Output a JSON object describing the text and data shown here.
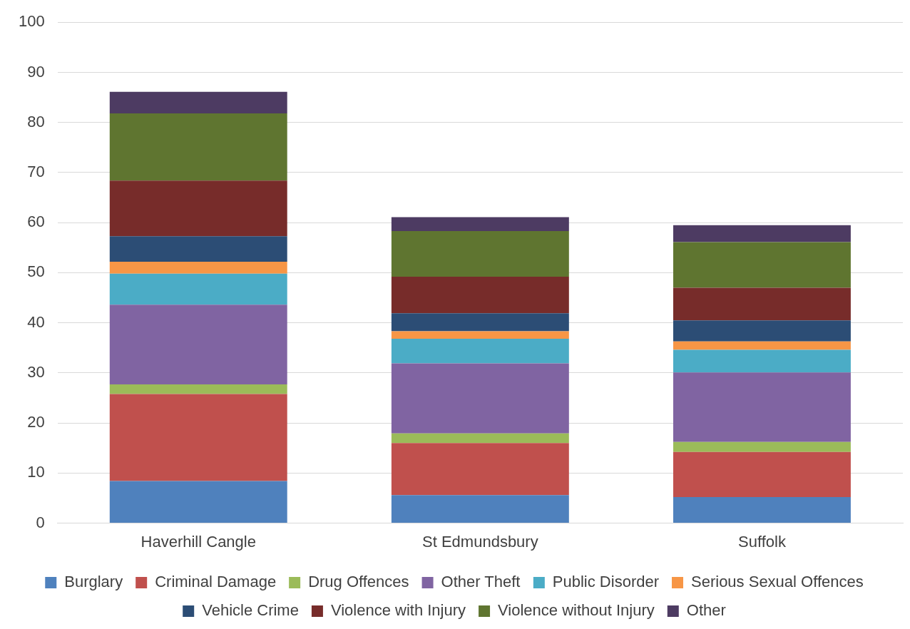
{
  "chart_data": {
    "type": "bar",
    "stacked": true,
    "categories": [
      "Haverhill Cangle",
      "St Edmundsbury",
      "Suffolk"
    ],
    "series": [
      {
        "name": "Burglary",
        "color": "#4f81bd",
        "values": [
          8.4,
          5.6,
          5.2
        ]
      },
      {
        "name": "Criminal Damage",
        "color": "#c0504d",
        "values": [
          17.4,
          10.4,
          9.0
        ]
      },
      {
        "name": "Drug Offences",
        "color": "#9bbb59",
        "values": [
          1.9,
          1.9,
          2.0
        ]
      },
      {
        "name": "Other Theft",
        "color": "#8064a2",
        "values": [
          15.9,
          14.0,
          13.9
        ]
      },
      {
        "name": "Public Disorder",
        "color": "#4bacc6",
        "values": [
          6.2,
          4.9,
          4.5
        ]
      },
      {
        "name": "Serious Sexual Offences",
        "color": "#f79646",
        "values": [
          2.4,
          1.5,
          1.7
        ]
      },
      {
        "name": "Vehicle Crime",
        "color": "#2c4d75",
        "values": [
          5.1,
          3.6,
          4.2
        ]
      },
      {
        "name": "Violence with Injury",
        "color": "#772c2a",
        "values": [
          11.1,
          7.3,
          6.5
        ]
      },
      {
        "name": "Violence without Injury",
        "color": "#5f7530",
        "values": [
          13.4,
          9.1,
          9.1
        ]
      },
      {
        "name": "Other",
        "color": "#4d3b62",
        "values": [
          4.3,
          2.8,
          3.4
        ]
      }
    ],
    "ylim": [
      0,
      100
    ],
    "yticks": [
      0,
      10,
      20,
      30,
      40,
      50,
      60,
      70,
      80,
      90,
      100
    ],
    "grid": "y",
    "legend": "bottom"
  }
}
